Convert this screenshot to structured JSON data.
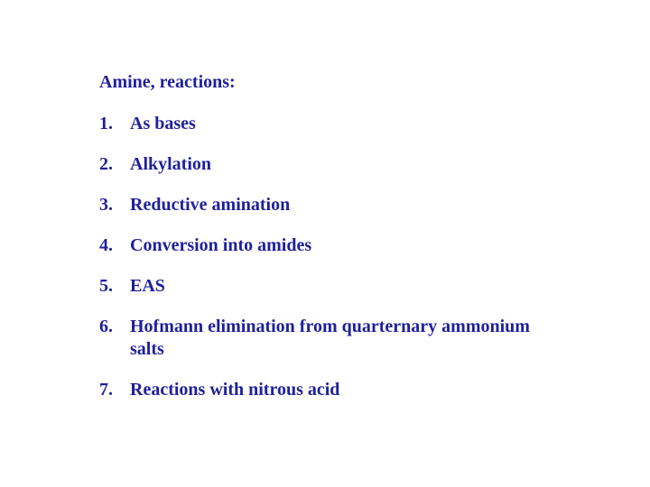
{
  "text_color": "#1f1f9b",
  "title": "Amine, reactions:",
  "items": [
    "As bases",
    "Alkylation",
    "Reductive amination",
    "Conversion into amides",
    "EAS",
    "Hofmann elimination from quarternary ammonium salts",
    "Reactions with nitrous acid"
  ]
}
